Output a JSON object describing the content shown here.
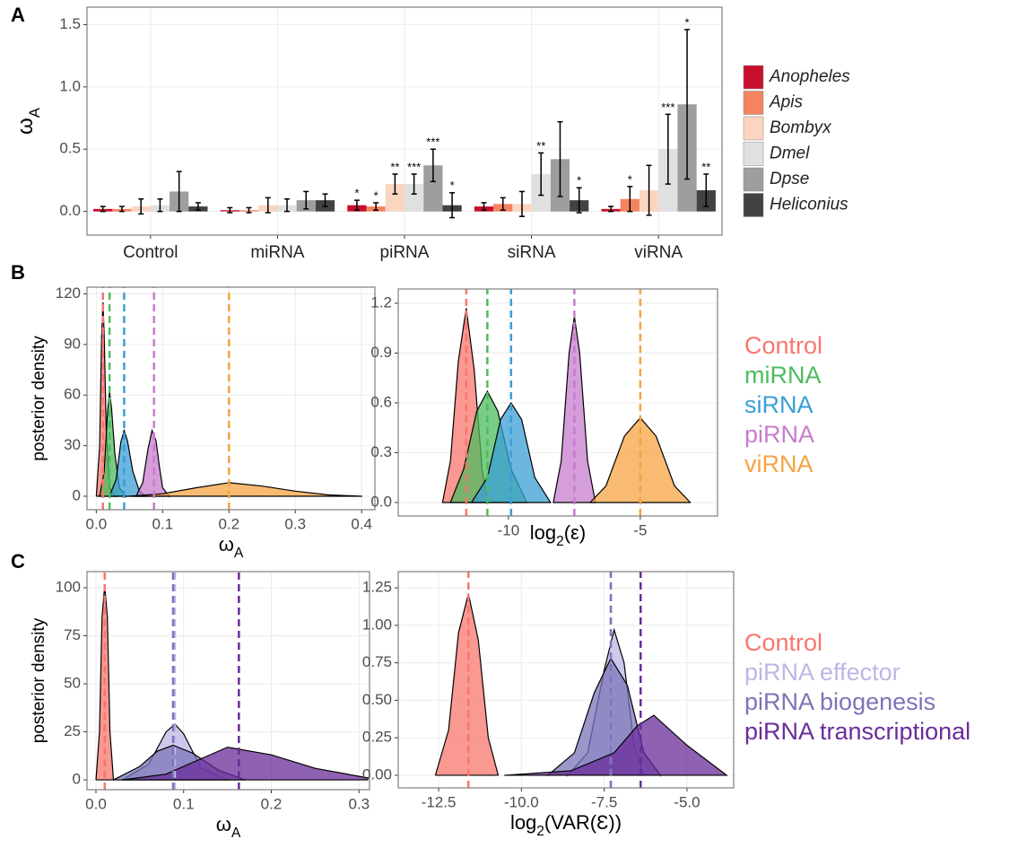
{
  "panel_labels": [
    "A",
    "B",
    "C"
  ],
  "chart_data": [
    {
      "type": "bar",
      "legend": "right",
      "ylabel": [
        "ω",
        "A"
      ],
      "categories": [
        "Control",
        "miRNA",
        "piRNA",
        "siRNA",
        "viRNA"
      ],
      "ylim": [
        -0.19,
        1.64
      ],
      "yticks": [
        {
          "value": 0,
          "label": "0.0"
        },
        0.5,
        {
          "value": 1,
          "label": "1.0"
        },
        1.5
      ],
      "grid": true,
      "series": [
        {
          "name": "Anopheles",
          "color": "#c8102e",
          "values": [
            0.02,
            0.01,
            0.05,
            0.04,
            0.02
          ],
          "errors": [
            0.02,
            0.02,
            0.04,
            0.03,
            0.02
          ],
          "significance": [
            null,
            null,
            "*",
            null,
            null
          ]
        },
        {
          "name": "Apis",
          "color": "#f4845f",
          "values": [
            0.02,
            0.01,
            0.04,
            0.06,
            0.1
          ],
          "errors": [
            0.02,
            0.02,
            0.03,
            0.05,
            0.1
          ],
          "significance": [
            null,
            null,
            "*",
            null,
            "*"
          ]
        },
        {
          "name": "Bombyx",
          "color": "#fcd5c0",
          "values": [
            0.04,
            0.05,
            0.22,
            0.06,
            0.17
          ],
          "errors": [
            0.06,
            0.06,
            0.08,
            0.1,
            0.2
          ],
          "significance": [
            null,
            null,
            "**",
            null,
            null
          ]
        },
        {
          "name": "Dmel",
          "color": "#e0e0e0",
          "values": [
            0.05,
            0.05,
            0.22,
            0.3,
            0.5
          ],
          "errors": [
            0.05,
            0.05,
            0.08,
            0.17,
            0.28
          ],
          "significance": [
            null,
            null,
            "***",
            "**",
            "***"
          ]
        },
        {
          "name": "Dpse",
          "color": "#9e9e9e",
          "values": [
            0.16,
            0.09,
            0.37,
            0.42,
            0.86
          ],
          "errors": [
            0.16,
            0.07,
            0.13,
            0.3,
            0.6
          ],
          "significance": [
            null,
            null,
            "***",
            null,
            "*"
          ]
        },
        {
          "name": "Heliconius",
          "color": "#424242",
          "values": [
            0.04,
            0.09,
            0.05,
            0.09,
            0.17
          ],
          "errors": [
            0.03,
            0.05,
            0.1,
            0.1,
            0.13
          ],
          "significance": [
            null,
            null,
            "*",
            "*",
            "**"
          ]
        }
      ]
    },
    {
      "type": "density",
      "legend": "right",
      "axes": [
        {
          "xlabel": [
            "ω",
            "A"
          ],
          "ylabel": "posterior density",
          "xlim": [
            -0.014,
            0.42
          ],
          "ylim": [
            -8,
            124
          ],
          "xticks": [
            {
              "value": 0,
              "label": "0.0"
            },
            0.1,
            0.2,
            0.3,
            0.4
          ],
          "yticks": [
            0,
            30,
            60,
            90,
            120
          ],
          "grid": true
        },
        {
          "xlabel": [
            "log",
            "2",
            "(ε)"
          ],
          "xlim": [
            -14.18,
            -2.07
          ],
          "ylim": [
            -0.081,
            1.286
          ],
          "xticks": [
            -10,
            -5
          ],
          "yticks": [
            {
              "value": 0,
              "label": "0.0"
            },
            0.3,
            0.6,
            0.9,
            1.2
          ],
          "grid": true
        }
      ],
      "series": [
        {
          "name": "Control",
          "color": "#f8766d",
          "curves": [
            {
              "x": [
                0.0,
                0.005,
                0.008,
                0.01,
                0.012,
                0.015,
                0.02,
                0.03
              ],
              "values": [
                0,
                30,
                95,
                115,
                95,
                40,
                5,
                0
              ],
              "mean": 0.01
            },
            {
              "x": [
                -12.5,
                -12.2,
                -11.9,
                -11.6,
                -11.3,
                -11.0,
                -10.8
              ],
              "values": [
                0,
                0.25,
                0.85,
                1.17,
                0.8,
                0.2,
                0
              ],
              "mean": -11.6
            }
          ]
        },
        {
          "name": "miRNA",
          "color": "#4cbb5e",
          "curves": [
            {
              "x": [
                0.005,
                0.012,
                0.017,
                0.02,
                0.023,
                0.028,
                0.035,
                0.045
              ],
              "values": [
                0,
                15,
                50,
                62,
                52,
                25,
                5,
                0
              ],
              "mean": 0.02
            },
            {
              "x": [
                -12.2,
                -11.7,
                -11.2,
                -10.8,
                -10.4,
                -9.9,
                -9.3
              ],
              "values": [
                0,
                0.2,
                0.55,
                0.67,
                0.55,
                0.2,
                0
              ],
              "mean": -10.8
            }
          ]
        },
        {
          "name": "siRNA",
          "color": "#3a9fd6",
          "curves": [
            {
              "x": [
                0.02,
                0.03,
                0.037,
                0.042,
                0.047,
                0.055,
                0.065,
                0.075
              ],
              "values": [
                0,
                10,
                32,
                39,
                33,
                15,
                3,
                0
              ],
              "mean": 0.042
            },
            {
              "x": [
                -11.4,
                -10.8,
                -10.3,
                -9.9,
                -9.5,
                -9.0,
                -8.4
              ],
              "values": [
                0,
                0.15,
                0.5,
                0.6,
                0.5,
                0.15,
                0
              ],
              "mean": -9.9
            }
          ]
        },
        {
          "name": "piRNA",
          "color": "#c77cce",
          "curves": [
            {
              "x": [
                0.06,
                0.07,
                0.078,
                0.084,
                0.09,
                0.095,
                0.1,
                0.11
              ],
              "values": [
                0,
                8,
                28,
                39,
                33,
                18,
                5,
                0
              ],
              "mean": 0.087
            },
            {
              "x": [
                -8.3,
                -8.0,
                -7.7,
                -7.5,
                -7.3,
                -7.0,
                -6.7
              ],
              "values": [
                0,
                0.25,
                0.9,
                1.12,
                0.9,
                0.25,
                0
              ],
              "mean": -7.5
            }
          ]
        },
        {
          "name": "viRNA",
          "color": "#f5a442",
          "curves": [
            {
              "x": [
                0.05,
                0.1,
                0.15,
                0.2,
                0.25,
                0.3,
                0.35,
                0.4
              ],
              "values": [
                0,
                1.5,
                5,
                8,
                6,
                3,
                0.8,
                0
              ],
              "mean": 0.2
            },
            {
              "x": [
                -6.9,
                -6.3,
                -5.6,
                -5.0,
                -4.4,
                -3.7,
                -3.1
              ],
              "values": [
                0,
                0.1,
                0.4,
                0.51,
                0.4,
                0.1,
                0
              ],
              "mean": -5
            }
          ]
        }
      ]
    },
    {
      "type": "density",
      "legend": "right",
      "axes": [
        {
          "xlabel": [
            "ω",
            "A"
          ],
          "ylabel": "posterior density",
          "xlim": [
            -0.0102,
            0.312
          ],
          "ylim": [
            -5.1,
            108.4
          ],
          "xticks": [
            {
              "value": 0,
              "label": "0.0"
            },
            0.1,
            0.2,
            0.3
          ],
          "yticks": [
            0,
            25,
            50,
            75,
            100
          ],
          "grid": true
        },
        {
          "xlabel": [
            "log",
            "2",
            "(VAR(Ɛ))"
          ],
          "xlim": [
            -13.72,
            -3.59
          ],
          "ylim": [
            -0.084,
            1.358
          ],
          "xticks": [
            -12.5,
            {
              "value": -10,
              "label": "-10.0"
            },
            -7.5,
            {
              "value": -5,
              "label": "-5.0"
            }
          ],
          "yticks": [
            {
              "value": 0,
              "label": "0.00"
            },
            0.25,
            {
              "value": 0.5,
              "label": "0.50"
            },
            0.75,
            {
              "value": 1,
              "label": "1.00"
            },
            1.25
          ],
          "grid": true
        }
      ],
      "series": [
        {
          "name": "Control",
          "color": "#f8766d",
          "curves": [
            {
              "x": [
                0.0,
                0.004,
                0.007,
                0.01,
                0.013,
                0.016,
                0.02
              ],
              "values": [
                0,
                25,
                85,
                101,
                85,
                25,
                0
              ],
              "mean": 0.01
            },
            {
              "x": [
                -12.6,
                -12.2,
                -11.9,
                -11.6,
                -11.3,
                -11.0,
                -10.7
              ],
              "values": [
                0,
                0.3,
                0.95,
                1.21,
                0.9,
                0.25,
                0
              ],
              "mean": -11.6
            }
          ]
        },
        {
          "name": "piRNA effector",
          "color": "#bcb7e6",
          "curves": [
            {
              "x": [
                0.03,
                0.06,
                0.08,
                0.09,
                0.1,
                0.12,
                0.15
              ],
              "values": [
                0,
                8,
                25,
                29,
                24,
                6,
                0
              ],
              "mean": 0.09
            },
            {
              "x": [
                -8.6,
                -8.0,
                -7.5,
                -7.2,
                -6.9,
                -6.6,
                -6.3
              ],
              "values": [
                0,
                0.15,
                0.7,
                0.97,
                0.75,
                0.2,
                0
              ],
              "mean": -7.3
            }
          ]
        },
        {
          "name": "piRNA biogenesis",
          "color": "#7b74b8",
          "curves": [
            {
              "x": [
                0.02,
                0.05,
                0.07,
                0.088,
                0.11,
                0.14,
                0.17
              ],
              "values": [
                0,
                7,
                15,
                18,
                14,
                5,
                0
              ],
              "mean": 0.088
            },
            {
              "x": [
                -9.2,
                -8.4,
                -7.8,
                -7.3,
                -6.8,
                -6.3,
                -5.8
              ],
              "values": [
                0,
                0.15,
                0.55,
                0.78,
                0.6,
                0.15,
                0
              ],
              "mean": -7.3
            }
          ]
        },
        {
          "name": "piRNA transcriptional",
          "color": "#6a2c9a",
          "curves": [
            {
              "x": [
                0.03,
                0.08,
                0.12,
                0.15,
                0.2,
                0.25,
                0.31
              ],
              "values": [
                0,
                3,
                11,
                17,
                13,
                6,
                1
              ],
              "mean": 0.163
            },
            {
              "x": [
                -10.5,
                -8.5,
                -7.2,
                -6.5,
                -6.0,
                -5.0,
                -3.8
              ],
              "values": [
                0,
                0.03,
                0.15,
                0.33,
                0.4,
                0.2,
                0
              ],
              "mean": -6.4
            }
          ]
        }
      ]
    }
  ]
}
